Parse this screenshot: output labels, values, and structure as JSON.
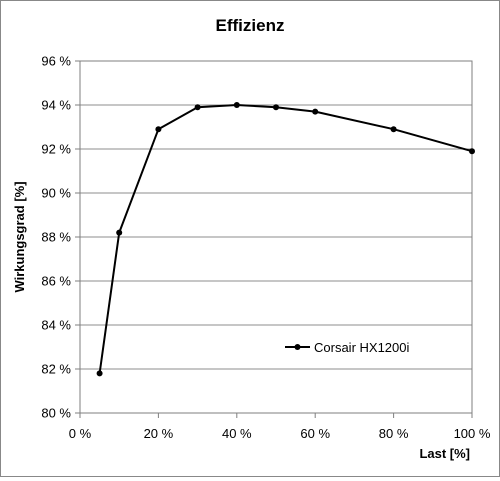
{
  "chart_data": {
    "type": "line",
    "title": "Effizienz",
    "xlabel": "Last [%]",
    "ylabel": "Wirkungsgrad [%]",
    "xlim": [
      0,
      100
    ],
    "ylim": [
      80,
      96
    ],
    "x_ticks": [
      0,
      20,
      40,
      60,
      80,
      100
    ],
    "y_ticks": [
      80,
      82,
      84,
      86,
      88,
      90,
      92,
      94,
      96
    ],
    "x_tick_labels": [
      "0 %",
      "20 %",
      "40 %",
      "60 %",
      "80 %",
      "100 %"
    ],
    "y_tick_labels": [
      "80 %",
      "82 %",
      "84 %",
      "86 %",
      "88 %",
      "90 %",
      "92 %",
      "94 %",
      "96 %"
    ],
    "grid": "horizontal",
    "legend_position": "lower-right",
    "series": [
      {
        "name": "Corsair HX1200i",
        "color": "#000000",
        "x": [
          5,
          10,
          20,
          30,
          40,
          50,
          60,
          80,
          100
        ],
        "y": [
          81.8,
          88.2,
          92.9,
          93.9,
          94.0,
          93.9,
          93.7,
          92.9,
          91.9
        ]
      }
    ]
  }
}
